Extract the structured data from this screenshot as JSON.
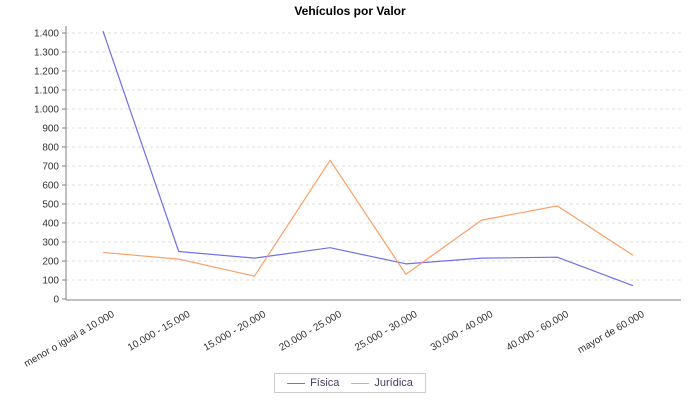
{
  "title": "Vehículos por Valor",
  "chart_data": {
    "type": "line",
    "title": "Vehículos por Valor",
    "categories": [
      "menor o igual a 10.000",
      "10.000 - 15.000",
      "15.000 - 20.000",
      "20.000 - 25.000",
      "25.000 - 30.000",
      "30.000 - 40.000",
      "40.000 - 60.000",
      "mayor de 60.000"
    ],
    "series": [
      {
        "name": "Física",
        "color": "#7070e8",
        "values": [
          1410,
          250,
          215,
          270,
          185,
          215,
          220,
          70
        ]
      },
      {
        "name": "Jurídica",
        "color": "#faa068",
        "values": [
          245,
          210,
          120,
          730,
          130,
          415,
          490,
          230
        ]
      }
    ],
    "xlabel": "",
    "ylabel": "",
    "ylim": [
      0,
      1400
    ],
    "ytick_step": 100,
    "ytick_labels": [
      "0",
      "100",
      "200",
      "300",
      "400",
      "500",
      "600",
      "700",
      "800",
      "900",
      "1.000",
      "1.100",
      "1.200",
      "1.300",
      "1.400"
    ],
    "grid": "horizontal-dashed",
    "legend_position": "bottom-center",
    "x_label_rotation_deg": -30
  },
  "legend": {
    "items": [
      {
        "label": "Física",
        "color": "#7070e8"
      },
      {
        "label": "Jurídica",
        "color": "#faa068"
      }
    ]
  },
  "colors": {
    "background": "#ffffff",
    "gridline": "#dcdcdc",
    "axis": "#808080",
    "tick_label": "#333333",
    "legend_text": "#4a3b61",
    "legend_border": "#cccccc"
  }
}
